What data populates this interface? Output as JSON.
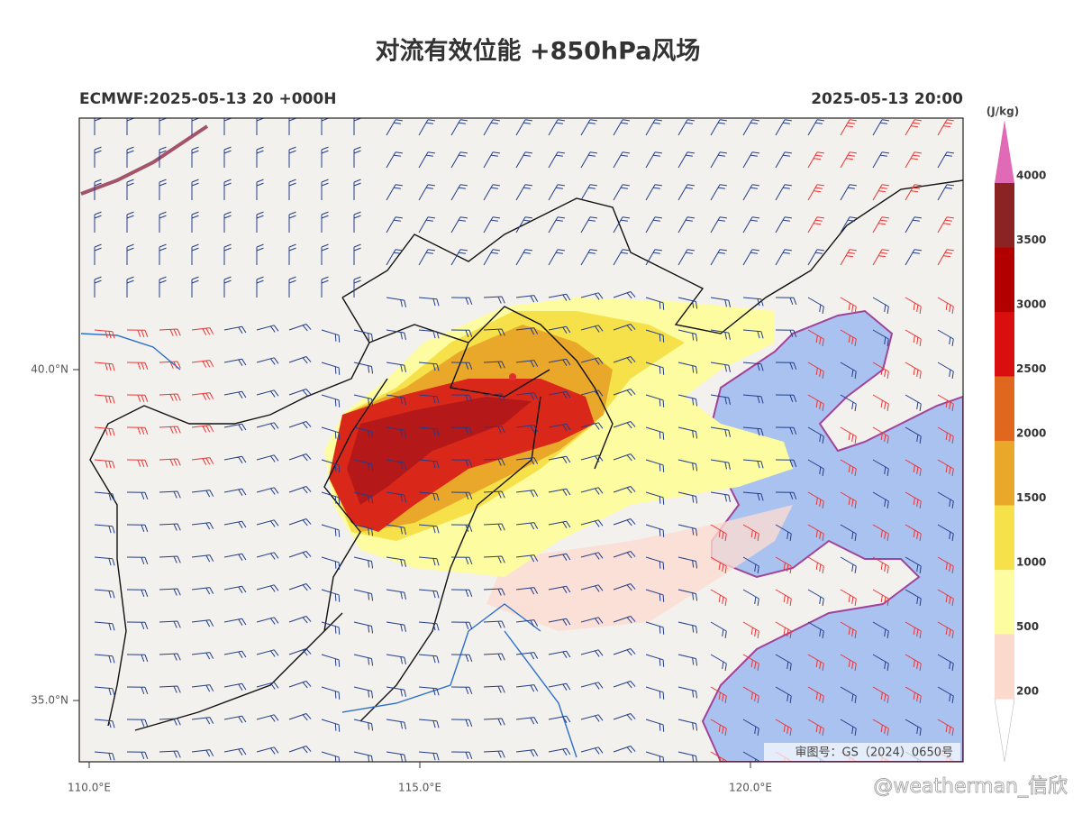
{
  "header": {
    "title": "对流有效位能 +850hPa风场",
    "left": "ECMWF:2025-05-13 20 +000H",
    "right": "2025-05-13 20:00"
  },
  "map": {
    "lat_ticks": [
      {
        "value": 40,
        "label": "40.0°N"
      },
      {
        "value": 35,
        "label": "35.0°N"
      }
    ],
    "lon_ticks": [
      {
        "value": 110,
        "label": "110.0°E"
      },
      {
        "value": 115,
        "label": "115.0°E"
      },
      {
        "value": 120,
        "label": "120.0°E"
      }
    ],
    "review_number": "审图号：GS（2024）0650号"
  },
  "colorbar": {
    "unit": "(J/kg)",
    "levels": [
      200,
      500,
      1000,
      1500,
      2000,
      2500,
      3000,
      3500,
      4000
    ],
    "colors": [
      "#ffffff",
      "#fcd9cd",
      "#fefca0",
      "#f7e14a",
      "#e9a82a",
      "#e0681e",
      "#d90f0f",
      "#b20000",
      "#8b2323",
      "#e06ab5"
    ]
  },
  "watermark": "@weatherman_信欣"
}
